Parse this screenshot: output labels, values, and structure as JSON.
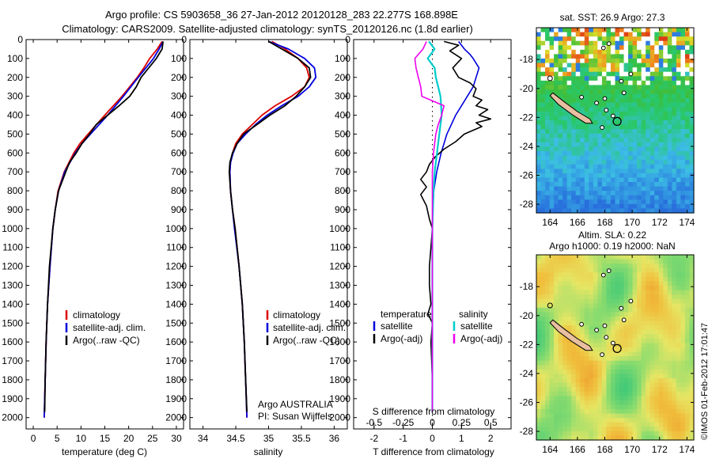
{
  "header": {
    "title_line1": "Argo profile: CS 5903658_36 27-Jan-2012 20120128_283 22.277S 168.898E",
    "title_line2": "Climatology: CARS2009. Satellite-adjusted climatology: synTS_20120126.nc (1.8d earlier)"
  },
  "depth_axis": {
    "ticks": [
      0,
      100,
      200,
      300,
      400,
      500,
      600,
      700,
      800,
      900,
      1000,
      1100,
      1200,
      1300,
      1400,
      1500,
      1600,
      1700,
      1800,
      1900,
      2000
    ],
    "range": [
      0,
      2060
    ]
  },
  "colors": {
    "climatology": "#dd0000",
    "satellite": "#0000dd",
    "argo": "#000000",
    "satellite_salinity_diff": "#00cccc",
    "argo_salinity_diff": "#ee00ee",
    "land": "#e8bfa0"
  },
  "chart_data": [
    {
      "type": "line",
      "name": "temperature",
      "xlabel": "temperature (deg C)",
      "xlim": [
        -1.5,
        31.5
      ],
      "xticks": [
        0,
        5,
        10,
        15,
        20,
        25,
        30
      ],
      "legend": [
        "climatology",
        "satellite-adj. clim.",
        "Argo(..raw -QC)"
      ],
      "series": [
        {
          "name": "climatology",
          "depth": [
            10,
            50,
            100,
            150,
            200,
            300,
            400,
            500,
            550,
            600,
            700,
            800,
            900,
            1000,
            1200,
            1400,
            1600,
            1800,
            2000
          ],
          "values": [
            27.0,
            26.0,
            24.4,
            23.2,
            21.8,
            18.6,
            15.0,
            11.5,
            9.8,
            8.5,
            6.5,
            5.2,
            4.6,
            4.1,
            3.5,
            3.0,
            2.7,
            2.5,
            2.3
          ]
        },
        {
          "name": "satellite-adj. clim.",
          "depth": [
            10,
            50,
            100,
            150,
            200,
            300,
            400,
            500,
            550,
            600,
            700,
            800,
            900,
            1000,
            1200,
            1400,
            1600,
            1800,
            2000
          ],
          "values": [
            27.2,
            26.4,
            25.2,
            23.6,
            22.0,
            18.9,
            15.6,
            12.0,
            10.2,
            8.8,
            6.6,
            5.3,
            4.6,
            4.1,
            3.5,
            3.0,
            2.7,
            2.5,
            2.3
          ]
        },
        {
          "name": "Argo(..raw -QC)",
          "depth": [
            10,
            50,
            100,
            150,
            200,
            250,
            300,
            350,
            400,
            450,
            500,
            550,
            600,
            650,
            700,
            800,
            900,
            1000,
            1200,
            1400,
            1600,
            1800,
            1970
          ],
          "values": [
            27.2,
            27.0,
            25.8,
            24.2,
            22.6,
            21.6,
            20.2,
            18.0,
            15.6,
            13.2,
            11.8,
            10.2,
            9.0,
            7.6,
            6.8,
            5.3,
            4.6,
            4.1,
            3.4,
            3.0,
            2.7,
            2.5,
            2.4
          ]
        }
      ]
    },
    {
      "type": "line",
      "name": "salinity",
      "xlabel": "salinity",
      "xlim": [
        33.8,
        36.2
      ],
      "xticks": [
        34,
        34.5,
        35,
        35.5,
        36
      ],
      "legend": [
        "climatology",
        "satellite-adj. clim.",
        "Argo(..raw -QC)"
      ],
      "series": [
        {
          "name": "climatology",
          "depth": [
            10,
            50,
            100,
            150,
            200,
            250,
            300,
            350,
            400,
            450,
            500,
            550,
            600,
            650,
            700,
            800,
            900,
            1000,
            1200,
            1400,
            1600,
            1800,
            2000
          ],
          "values": [
            35.05,
            35.25,
            35.45,
            35.58,
            35.62,
            35.55,
            35.35,
            35.1,
            34.9,
            34.75,
            34.6,
            34.5,
            34.45,
            34.42,
            34.41,
            34.42,
            34.45,
            34.49,
            34.55,
            34.6,
            34.63,
            34.65,
            34.67
          ]
        },
        {
          "name": "satellite-adj. clim.",
          "depth": [
            10,
            50,
            100,
            150,
            200,
            250,
            300,
            350,
            400,
            450,
            500,
            550,
            600,
            650,
            700,
            800,
            900,
            1000,
            1200,
            1400,
            1600,
            1800,
            2000
          ],
          "values": [
            35.0,
            35.3,
            35.55,
            35.7,
            35.72,
            35.62,
            35.45,
            35.2,
            34.98,
            34.8,
            34.65,
            34.52,
            34.46,
            34.42,
            34.41,
            34.42,
            34.45,
            34.48,
            34.55,
            34.6,
            34.63,
            34.65,
            34.67
          ]
        },
        {
          "name": "Argo(..raw -QC)",
          "depth": [
            10,
            50,
            100,
            150,
            200,
            250,
            300,
            350,
            400,
            450,
            500,
            550,
            600,
            650,
            700,
            800,
            900,
            1000,
            1200,
            1400,
            1600,
            1800,
            1970
          ],
          "values": [
            35.0,
            35.2,
            35.45,
            35.62,
            35.64,
            35.55,
            35.42,
            35.25,
            35.02,
            34.82,
            34.62,
            34.52,
            34.45,
            34.41,
            34.4,
            34.42,
            34.45,
            34.49,
            34.55,
            34.6,
            34.63,
            34.65,
            34.67
          ]
        }
      ],
      "annotations": [
        "Argo AUSTRALIA",
        "PI: Susan Wijffels"
      ]
    },
    {
      "type": "line",
      "name": "differences",
      "xlabel_bottom": "T difference from climatology",
      "xlabel_top": "S difference from climatology",
      "xlim_T": [
        -2.7,
        2.7
      ],
      "xticks_T": [
        -2,
        -1,
        0,
        1,
        2
      ],
      "xticks_S": [
        -0.5,
        -0.25,
        0,
        0.25,
        0.5
      ],
      "s_scale_factor": 4,
      "legend": {
        "temperature_heading": "temperature",
        "salinity_heading": "salinity",
        "t_satellite": "satellite",
        "t_argo": "Argo(-adj)",
        "s_satellite": "satellite",
        "s_argo": "Argo(-adj)"
      },
      "series": [
        {
          "name": "T satellite",
          "depth": [
            10,
            50,
            80,
            100,
            150,
            200,
            250,
            300,
            350,
            400,
            500,
            600,
            700,
            800,
            900,
            1000,
            1500,
            1970
          ],
          "values_T": [
            0.9,
            1.1,
            1.3,
            1.4,
            1.6,
            1.5,
            1.4,
            1.2,
            1.0,
            0.8,
            0.5,
            0.3,
            0.15,
            0.05,
            0.02,
            0.0,
            0.0,
            0.0
          ]
        },
        {
          "name": "T Argo(-adj)",
          "depth": [
            10,
            30,
            60,
            100,
            150,
            200,
            230,
            260,
            300,
            320,
            350,
            370,
            400,
            420,
            440,
            460,
            500,
            540,
            580,
            620,
            660,
            700,
            740,
            780,
            820,
            880,
            950,
            1000,
            1100,
            1200,
            1300,
            1400,
            1450,
            1500,
            1600,
            1800,
            1970
          ],
          "values_T": [
            0.4,
            0.9,
            0.6,
            1.0,
            0.7,
            0.9,
            1.3,
            1.5,
            1.4,
            1.7,
            1.5,
            1.9,
            1.6,
            2.0,
            1.5,
            1.7,
            1.1,
            0.8,
            0.4,
            0.1,
            -0.1,
            -0.2,
            -0.4,
            -0.2,
            -0.4,
            -0.2,
            -0.1,
            0.0,
            -0.05,
            -0.1,
            -0.1,
            -0.05,
            -0.15,
            0.0,
            -0.05,
            0.0,
            0.0
          ]
        },
        {
          "name": "S satellite",
          "depth": [
            10,
            50,
            100,
            150,
            200,
            250,
            300,
            400,
            500,
            600,
            700,
            800,
            1000,
            1500,
            1970
          ],
          "values_S": [
            -0.03,
            0.02,
            -0.04,
            0.02,
            0.03,
            0.05,
            0.07,
            0.08,
            0.06,
            0.04,
            0.02,
            0.01,
            0.0,
            0.0,
            0.0
          ]
        },
        {
          "name": "S Argo(-adj)",
          "depth": [
            10,
            50,
            100,
            150,
            200,
            250,
            300,
            350,
            400,
            450,
            500,
            550,
            600,
            700,
            800,
            1000,
            1500,
            1970
          ],
          "values_S": [
            -0.05,
            -0.08,
            -0.15,
            -0.14,
            -0.12,
            -0.1,
            -0.09,
            0.1,
            0.08,
            0.05,
            0.03,
            0.02,
            0.01,
            0.0,
            0.0,
            0.0,
            0.0,
            0.0
          ]
        }
      ]
    },
    {
      "type": "heatmap",
      "name": "sst_map",
      "title": "sat. SST: 26.9 Argo: 27.3",
      "xticks": [
        164,
        166,
        168,
        170,
        172,
        174
      ],
      "yticks": [
        -18,
        -20,
        -22,
        -24,
        -26,
        -28
      ],
      "lon_range": [
        163.0,
        174.5
      ],
      "lat_range": [
        -15.8,
        -28.6
      ],
      "argo_position": {
        "lon": 168.898,
        "lat": -22.277
      }
    },
    {
      "type": "heatmap",
      "name": "sla_map",
      "title_line1": "Altim. SLA: 0.22",
      "title_line2": "Argo h1000: 0.19 h2000: NaN",
      "xticks": [
        164,
        166,
        168,
        170,
        172,
        174
      ],
      "yticks": [
        -18,
        -20,
        -22,
        -24,
        -26,
        -28
      ],
      "lon_range": [
        163.0,
        174.5
      ],
      "lat_range": [
        -15.8,
        -28.6
      ],
      "argo_position": {
        "lon": 168.898,
        "lat": -22.277
      }
    }
  ],
  "footer": {
    "stamp": "©IMOS 01-Feb-2012 17:01:47"
  }
}
